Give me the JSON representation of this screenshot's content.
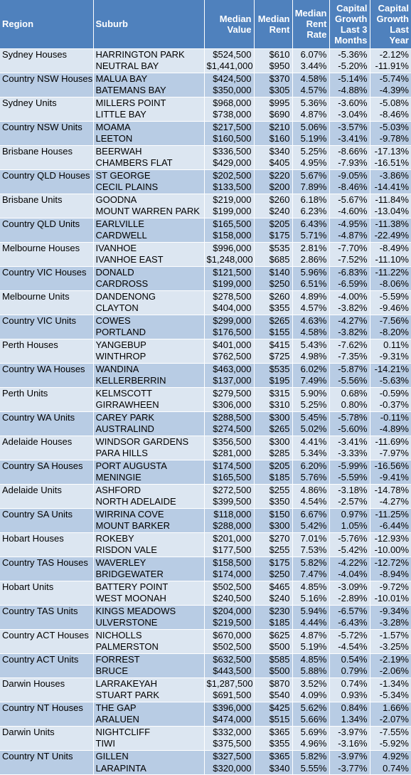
{
  "headers": {
    "region": "Region",
    "suburb": "Suburb",
    "median_value": [
      "Median",
      "Value"
    ],
    "median_rent": [
      "Median",
      "Rent"
    ],
    "median_rent_rate": [
      "Median",
      "Rent",
      "Rate"
    ],
    "cg_3m": [
      "Capital",
      "Growth",
      "Last 3",
      "Months"
    ],
    "cg_1y": [
      "Capital",
      "Growth",
      "Last",
      "Year"
    ]
  },
  "groups": [
    {
      "region": "Sydney Houses",
      "rows": [
        {
          "suburb": "HARRINGTON PARK",
          "value": "$524,500",
          "rent": "$610",
          "rate": "6.07%",
          "g3": "-5.36%",
          "g12": "-2.12%"
        },
        {
          "suburb": "NEUTRAL BAY",
          "value": "$1,441,000",
          "rent": "$950",
          "rate": "3.44%",
          "g3": "-5.20%",
          "g12": "-11.91%"
        }
      ]
    },
    {
      "region": "Country NSW Houses",
      "rows": [
        {
          "suburb": "MALUA BAY",
          "value": "$424,500",
          "rent": "$370",
          "rate": "4.58%",
          "g3": "-5.14%",
          "g12": "-5.74%"
        },
        {
          "suburb": "BATEMANS BAY",
          "value": "$350,000",
          "rent": "$305",
          "rate": "4.57%",
          "g3": "-4.88%",
          "g12": "-4.39%"
        }
      ]
    },
    {
      "region": "Sydney Units",
      "rows": [
        {
          "suburb": "MILLERS POINT",
          "value": "$968,000",
          "rent": "$995",
          "rate": "5.36%",
          "g3": "-3.60%",
          "g12": "-5.08%"
        },
        {
          "suburb": "LITTLE BAY",
          "value": "$738,000",
          "rent": "$690",
          "rate": "4.87%",
          "g3": "-3.04%",
          "g12": "-8.46%"
        }
      ]
    },
    {
      "region": "Country NSW Units",
      "rows": [
        {
          "suburb": "MOAMA",
          "value": "$217,500",
          "rent": "$210",
          "rate": "5.06%",
          "g3": "-3.57%",
          "g12": "-5.03%"
        },
        {
          "suburb": "LEETON",
          "value": "$160,500",
          "rent": "$160",
          "rate": "5.19%",
          "g3": "-3.41%",
          "g12": "-9.78%"
        }
      ]
    },
    {
      "region": "Brisbane Houses",
      "rows": [
        {
          "suburb": "BEERWAH",
          "value": "$336,500",
          "rent": "$340",
          "rate": "5.25%",
          "g3": "-8.66%",
          "g12": "-17.13%"
        },
        {
          "suburb": "CHAMBERS FLAT",
          "value": "$429,000",
          "rent": "$405",
          "rate": "4.95%",
          "g3": "-7.93%",
          "g12": "-16.51%"
        }
      ]
    },
    {
      "region": "Country QLD Houses",
      "rows": [
        {
          "suburb": "ST GEORGE",
          "value": "$202,500",
          "rent": "$220",
          "rate": "5.67%",
          "g3": "-9.05%",
          "g12": "-3.86%"
        },
        {
          "suburb": "CECIL PLAINS",
          "value": "$133,500",
          "rent": "$200",
          "rate": "7.89%",
          "g3": "-8.46%",
          "g12": "-14.41%"
        }
      ]
    },
    {
      "region": "Brisbane Units",
      "rows": [
        {
          "suburb": "GOODNA",
          "value": "$219,000",
          "rent": "$260",
          "rate": "6.18%",
          "g3": "-5.67%",
          "g12": "-11.84%"
        },
        {
          "suburb": "MOUNT WARREN PARK",
          "value": "$199,000",
          "rent": "$240",
          "rate": "6.23%",
          "g3": "-4.60%",
          "g12": "-13.04%"
        }
      ]
    },
    {
      "region": "Country QLD Units",
      "rows": [
        {
          "suburb": "EARLVILLE",
          "value": "$165,500",
          "rent": "$205",
          "rate": "6.43%",
          "g3": "-4.95%",
          "g12": "-11.38%"
        },
        {
          "suburb": "CARDWELL",
          "value": "$158,000",
          "rent": "$175",
          "rate": "5.71%",
          "g3": "-4.87%",
          "g12": "-22.49%"
        }
      ]
    },
    {
      "region": "Melbourne Houses",
      "rows": [
        {
          "suburb": "IVANHOE",
          "value": "$996,000",
          "rent": "$535",
          "rate": "2.81%",
          "g3": "-7.70%",
          "g12": "-8.49%"
        },
        {
          "suburb": "IVANHOE EAST",
          "value": "$1,248,000",
          "rent": "$685",
          "rate": "2.86%",
          "g3": "-7.52%",
          "g12": "-11.10%"
        }
      ]
    },
    {
      "region": "Country VIC Houses",
      "rows": [
        {
          "suburb": "DONALD",
          "value": "$121,500",
          "rent": "$140",
          "rate": "5.96%",
          "g3": "-6.83%",
          "g12": "-11.22%"
        },
        {
          "suburb": "CARDROSS",
          "value": "$199,000",
          "rent": "$250",
          "rate": "6.51%",
          "g3": "-6.59%",
          "g12": "-8.06%"
        }
      ]
    },
    {
      "region": "Melbourne Units",
      "rows": [
        {
          "suburb": "DANDENONG",
          "value": "$278,500",
          "rent": "$260",
          "rate": "4.89%",
          "g3": "-4.00%",
          "g12": "-5.59%"
        },
        {
          "suburb": "CLAYTON",
          "value": "$404,000",
          "rent": "$355",
          "rate": "4.57%",
          "g3": "-3.82%",
          "g12": "-9.46%"
        }
      ]
    },
    {
      "region": "Country VIC Units",
      "rows": [
        {
          "suburb": "COWES",
          "value": "$299,000",
          "rent": "$265",
          "rate": "4.63%",
          "g3": "-4.27%",
          "g12": "-7.56%"
        },
        {
          "suburb": "PORTLAND",
          "value": "$176,500",
          "rent": "$155",
          "rate": "4.58%",
          "g3": "-3.82%",
          "g12": "-8.20%"
        }
      ]
    },
    {
      "region": "Perth Houses",
      "rows": [
        {
          "suburb": "YANGEBUP",
          "value": "$401,000",
          "rent": "$415",
          "rate": "5.43%",
          "g3": "-7.62%",
          "g12": "0.11%"
        },
        {
          "suburb": "WINTHROP",
          "value": "$762,500",
          "rent": "$725",
          "rate": "4.98%",
          "g3": "-7.35%",
          "g12": "-9.31%"
        }
      ]
    },
    {
      "region": "Country WA Houses",
      "rows": [
        {
          "suburb": "WANDINA",
          "value": "$463,000",
          "rent": "$535",
          "rate": "6.02%",
          "g3": "-5.87%",
          "g12": "-14.21%"
        },
        {
          "suburb": "KELLERBERRIN",
          "value": "$137,000",
          "rent": "$195",
          "rate": "7.49%",
          "g3": "-5.56%",
          "g12": "-5.63%"
        }
      ]
    },
    {
      "region": "Perth Units",
      "rows": [
        {
          "suburb": "KELMSCOTT",
          "value": "$279,500",
          "rent": "$315",
          "rate": "5.90%",
          "g3": "0.68%",
          "g12": "-0.59%"
        },
        {
          "suburb": "GIRRAWHEEN",
          "value": "$306,000",
          "rent": "$310",
          "rate": "5.25%",
          "g3": "0.80%",
          "g12": "-0.37%"
        }
      ]
    },
    {
      "region": "Country WA Units",
      "rows": [
        {
          "suburb": "CAREY PARK",
          "value": "$288,500",
          "rent": "$300",
          "rate": "5.45%",
          "g3": "-5.78%",
          "g12": "-0.11%"
        },
        {
          "suburb": "AUSTRALIND",
          "value": "$274,500",
          "rent": "$265",
          "rate": "5.02%",
          "g3": "-5.60%",
          "g12": "-4.89%"
        }
      ]
    },
    {
      "region": "Adelaide Houses",
      "rows": [
        {
          "suburb": "WINDSOR GARDENS",
          "value": "$356,500",
          "rent": "$300",
          "rate": "4.41%",
          "g3": "-3.41%",
          "g12": "-11.69%"
        },
        {
          "suburb": "PARA HILLS",
          "value": "$281,000",
          "rent": "$285",
          "rate": "5.34%",
          "g3": "-3.33%",
          "g12": "-7.97%"
        }
      ]
    },
    {
      "region": "Country SA Houses",
      "rows": [
        {
          "suburb": "PORT AUGUSTA",
          "value": "$174,500",
          "rent": "$205",
          "rate": "6.20%",
          "g3": "-5.99%",
          "g12": "-16.56%"
        },
        {
          "suburb": "MENINGIE",
          "value": "$165,500",
          "rent": "$185",
          "rate": "5.76%",
          "g3": "-5.59%",
          "g12": "-9.41%"
        }
      ]
    },
    {
      "region": "Adelaide Units",
      "rows": [
        {
          "suburb": "ASHFORD",
          "value": "$272,500",
          "rent": "$255",
          "rate": "4.86%",
          "g3": "-3.18%",
          "g12": "-14.78%"
        },
        {
          "suburb": "NORTH ADELAIDE",
          "value": "$399,500",
          "rent": "$350",
          "rate": "4.54%",
          "g3": "-2.57%",
          "g12": "-4.27%"
        }
      ]
    },
    {
      "region": "Country SA Units",
      "rows": [
        {
          "suburb": "WIRRINA COVE",
          "value": "$118,000",
          "rent": "$150",
          "rate": "6.67%",
          "g3": "0.97%",
          "g12": "-11.25%"
        },
        {
          "suburb": "MOUNT BARKER",
          "value": "$288,000",
          "rent": "$300",
          "rate": "5.42%",
          "g3": "1.05%",
          "g12": "-6.44%"
        }
      ]
    },
    {
      "region": "Hobart Houses",
      "rows": [
        {
          "suburb": "ROKEBY",
          "value": "$201,000",
          "rent": "$270",
          "rate": "7.01%",
          "g3": "-5.76%",
          "g12": "-12.93%"
        },
        {
          "suburb": "RISDON VALE",
          "value": "$177,500",
          "rent": "$255",
          "rate": "7.53%",
          "g3": "-5.42%",
          "g12": "-10.00%"
        }
      ]
    },
    {
      "region": "Country TAS Houses",
      "rows": [
        {
          "suburb": "WAVERLEY",
          "value": "$158,500",
          "rent": "$175",
          "rate": "5.82%",
          "g3": "-4.22%",
          "g12": "-12.72%"
        },
        {
          "suburb": "BRIDGEWATER",
          "value": "$174,000",
          "rent": "$250",
          "rate": "7.47%",
          "g3": "-4.04%",
          "g12": "-8.94%"
        }
      ]
    },
    {
      "region": "Hobart Units",
      "rows": [
        {
          "suburb": "BATTERY POINT",
          "value": "$502,500",
          "rent": "$465",
          "rate": "4.85%",
          "g3": "-3.09%",
          "g12": "-9.72%"
        },
        {
          "suburb": "WEST MOONAH",
          "value": "$240,500",
          "rent": "$240",
          "rate": "5.16%",
          "g3": "-2.89%",
          "g12": "-10.01%"
        }
      ]
    },
    {
      "region": "Country TAS Units",
      "rows": [
        {
          "suburb": "KINGS MEADOWS",
          "value": "$204,000",
          "rent": "$230",
          "rate": "5.94%",
          "g3": "-6.57%",
          "g12": "-9.34%"
        },
        {
          "suburb": "ULVERSTONE",
          "value": "$219,500",
          "rent": "$185",
          "rate": "4.44%",
          "g3": "-6.43%",
          "g12": "-3.28%"
        }
      ]
    },
    {
      "region": "Country ACT Houses",
      "rows": [
        {
          "suburb": "NICHOLLS",
          "value": "$670,000",
          "rent": "$625",
          "rate": "4.87%",
          "g3": "-5.72%",
          "g12": "-1.57%"
        },
        {
          "suburb": "PALMERSTON",
          "value": "$502,500",
          "rent": "$500",
          "rate": "5.19%",
          "g3": "-4.54%",
          "g12": "-3.25%"
        }
      ]
    },
    {
      "region": "Country ACT Units",
      "rows": [
        {
          "suburb": "FORREST",
          "value": "$632,500",
          "rent": "$585",
          "rate": "4.85%",
          "g3": "0.54%",
          "g12": "-2.19%"
        },
        {
          "suburb": "BRUCE",
          "value": "$443,500",
          "rent": "$500",
          "rate": "5.88%",
          "g3": "0.79%",
          "g12": "-2.06%"
        }
      ]
    },
    {
      "region": "Darwin Houses",
      "rows": [
        {
          "suburb": "LARRAKEYAH",
          "value": "$1,287,500",
          "rent": "$870",
          "rate": "3.52%",
          "g3": "0.74%",
          "g12": "-1.34%"
        },
        {
          "suburb": "STUART PARK",
          "value": "$691,500",
          "rent": "$540",
          "rate": "4.09%",
          "g3": "0.93%",
          "g12": "-5.34%"
        }
      ]
    },
    {
      "region": "Country NT Houses",
      "rows": [
        {
          "suburb": "THE GAP",
          "value": "$396,000",
          "rent": "$425",
          "rate": "5.62%",
          "g3": "0.84%",
          "g12": "1.66%"
        },
        {
          "suburb": "ARALUEN",
          "value": "$474,000",
          "rent": "$515",
          "rate": "5.66%",
          "g3": "1.34%",
          "g12": "-2.07%"
        }
      ]
    },
    {
      "region": "Darwin Units",
      "rows": [
        {
          "suburb": "NIGHTCLIFF",
          "value": "$332,000",
          "rent": "$365",
          "rate": "5.69%",
          "g3": "-3.97%",
          "g12": "-7.55%"
        },
        {
          "suburb": "TIWI",
          "value": "$375,500",
          "rent": "$355",
          "rate": "4.96%",
          "g3": "-3.16%",
          "g12": "-5.92%"
        }
      ]
    },
    {
      "region": "Country NT Units",
      "rows": [
        {
          "suburb": "GILLEN",
          "value": "$327,500",
          "rent": "$365",
          "rate": "5.82%",
          "g3": "-3.97%",
          "g12": "4.92%"
        },
        {
          "suburb": "LARAPINTA",
          "value": "$320,000",
          "rent": "$340",
          "rate": "5.55%",
          "g3": "-3.77%",
          "g12": "0.74%"
        }
      ]
    }
  ]
}
